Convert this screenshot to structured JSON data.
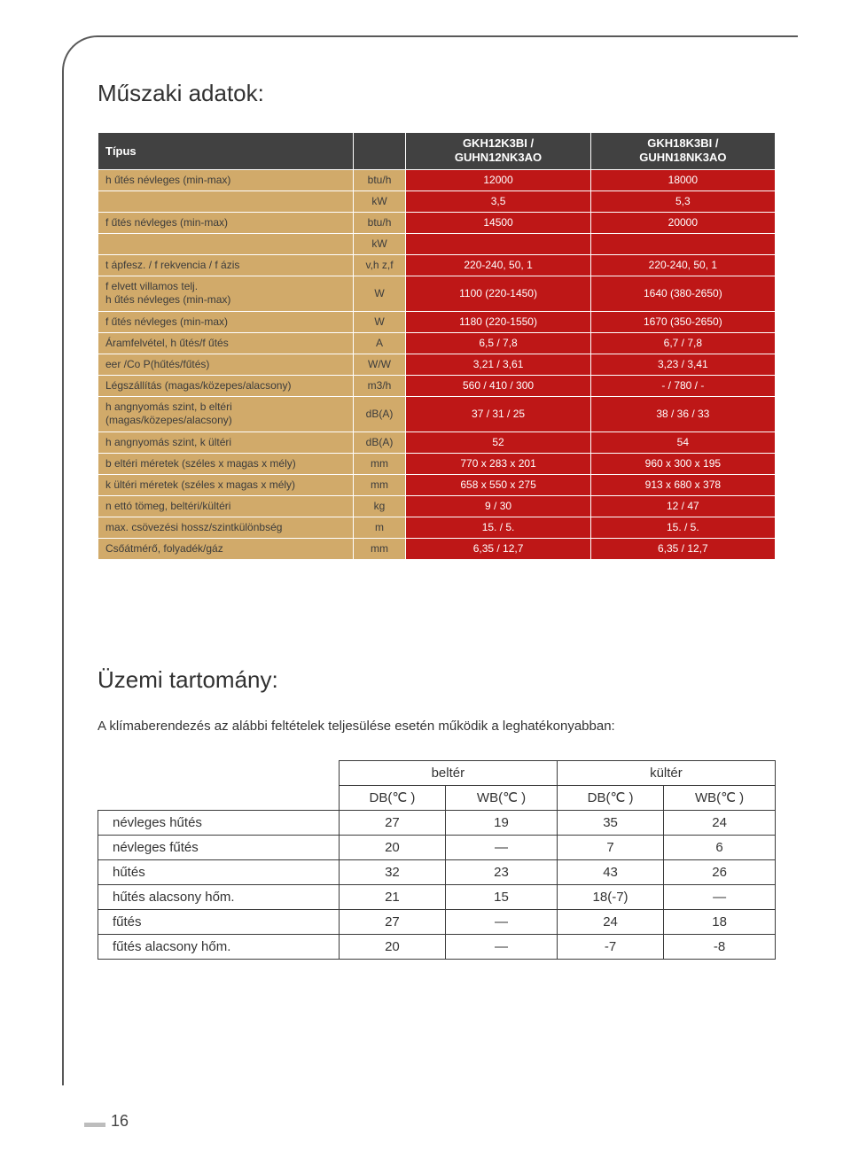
{
  "page_number": "16",
  "section1_title": "Műszaki adatok:",
  "spec": {
    "header": {
      "type": "Típus",
      "col1": "GKH12K3BI /\nGUHN12NK3AO",
      "col2": "GKH18K3BI /\nGUHN18NK3AO"
    },
    "rows": [
      {
        "label": "h űtés névleges (min-max)",
        "unit": "btu/h",
        "v1": "12000",
        "v2": "18000"
      },
      {
        "label": "",
        "unit": "kW",
        "v1": "3,5",
        "v2": "5,3"
      },
      {
        "label": "f űtés névleges (min-max)",
        "unit": "btu/h",
        "v1": "14500",
        "v2": "20000"
      },
      {
        "label": "",
        "unit": "kW",
        "v1": "",
        "v2": ""
      },
      {
        "label": "t ápfesz. / f rekvencia / f ázis",
        "unit": "v,h z,f",
        "v1": "220-240, 50, 1",
        "v2": "220-240, 50, 1"
      },
      {
        "label": "f elvett villamos telj.\nh űtés névleges (min-max)",
        "unit": "W",
        "v1": "1100 (220-1450)",
        "v2": "1640 (380-2650)"
      },
      {
        "label": "f űtés névleges (min-max)",
        "unit": "W",
        "v1": "1180 (220-1550)",
        "v2": "1670 (350-2650)"
      },
      {
        "label": "Áramfelvétel, h űtés/f űtés",
        "unit": "A",
        "v1": "6,5 / 7,8",
        "v2": "6,7 / 7,8"
      },
      {
        "label": "eer /Co P(hűtés/fűtés)",
        "unit": "W/W",
        "v1": "3,21 / 3,61",
        "v2": "3,23 / 3,41"
      },
      {
        "label": "Légszállítás (magas/közepes/alacsony)",
        "unit": "m3/h",
        "v1": "560 / 410 / 300",
        "v2": "- / 780 / -"
      },
      {
        "label": "h angnyomás szint, b eltéri\n(magas/közepes/alacsony)",
        "unit": "dB(A)",
        "v1": "37 / 31 / 25",
        "v2": "38 / 36 / 33"
      },
      {
        "label": "h angnyomás szint, k ültéri",
        "unit": "dB(A)",
        "v1": "52",
        "v2": "54"
      },
      {
        "label": "b eltéri méretek (széles x magas x mély)",
        "unit": "mm",
        "v1": "770 x 283 x 201",
        "v2": "960 x 300 x 195"
      },
      {
        "label": "k ültéri méretek (széles x magas x mély)",
        "unit": "mm",
        "v1": "658 x 550 x 275",
        "v2": "913 x 680 x 378"
      },
      {
        "label": "n ettó tömeg, beltéri/kültéri",
        "unit": "kg",
        "v1": "9 / 30",
        "v2": "12 / 47"
      },
      {
        "label": "max. csövezési hossz/szintkülönbség",
        "unit": "m",
        "v1": "15. / 5.",
        "v2": "15. / 5."
      },
      {
        "label": "Csőátmérő, folyadék/gáz",
        "unit": "mm",
        "v1": "6,35 / 12,7",
        "v2": "6,35 / 12,7"
      }
    ]
  },
  "section2_title": "Üzemi tartomány:",
  "op_intro": "A klímaberendezés az alábbi feltételek teljesülése esetén működik a leghatékonyabban:",
  "op": {
    "head_groups": [
      "beltér",
      "kültér"
    ],
    "sub": [
      "DB(℃ )",
      "WB(℃ )",
      "DB(℃ )",
      "WB(℃ )"
    ],
    "rows": [
      {
        "label": "névleges hűtés",
        "c": [
          "27",
          "19",
          "35",
          "24"
        ]
      },
      {
        "label": "névleges fűtés",
        "c": [
          "20",
          "—",
          "7",
          "6"
        ]
      },
      {
        "label": "hűtés",
        "c": [
          "32",
          "23",
          "43",
          "26"
        ]
      },
      {
        "label": "hűtés alacsony hőm.",
        "c": [
          "21",
          "15",
          "18(-7)",
          "—"
        ]
      },
      {
        "label": "fűtés",
        "c": [
          "27",
          "—",
          "24",
          "18"
        ]
      },
      {
        "label": "fűtés alacsony hőm.",
        "c": [
          "20",
          "—",
          "-7",
          "-8"
        ]
      }
    ]
  },
  "colors": {
    "label_bg": "#d1aa6a",
    "value_bg": "#be1717",
    "header_bg": "#414141"
  }
}
